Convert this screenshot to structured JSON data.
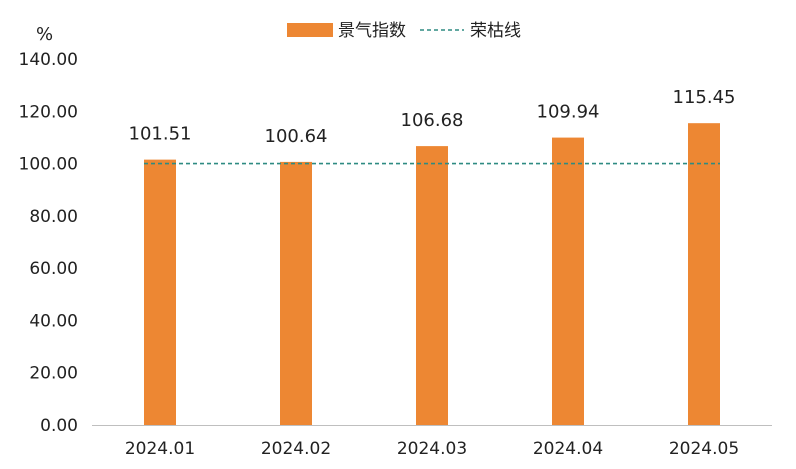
{
  "chart_data": {
    "type": "bar",
    "title": "",
    "xlabel": "",
    "ylabel": "%",
    "categories": [
      "2024.01",
      "2024.02",
      "2024.03",
      "2024.04",
      "2024.05"
    ],
    "series": [
      {
        "name": "景气指数",
        "values": [
          101.51,
          100.64,
          106.68,
          109.94,
          115.45
        ],
        "color": "#ED8733"
      }
    ],
    "data_labels": [
      "101.51",
      "100.64",
      "106.68",
      "109.94",
      "115.45"
    ],
    "reference_line": {
      "name": "荣枯线",
      "value": 100,
      "color": "#2E8B82",
      "style": "dashed"
    },
    "ylim": [
      0,
      140
    ],
    "yticks": [
      "0.00",
      "20.00",
      "40.00",
      "60.00",
      "80.00",
      "100.00",
      "120.00",
      "140.00"
    ],
    "legend_position": "top-center",
    "grid": false
  }
}
